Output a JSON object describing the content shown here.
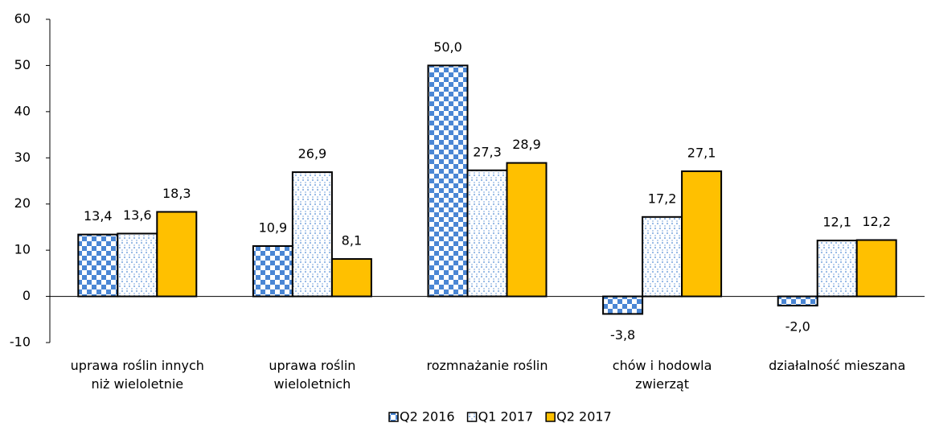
{
  "chart_data": {
    "type": "bar",
    "categories": [
      "uprawa roślin innych niż wieloletnie",
      "uprawa roślin wieloletnich",
      "rozmnażanie roślin",
      "chów i hodowla zwierząt",
      "działalność mieszana"
    ],
    "series": [
      {
        "name": "Q2 2016",
        "color": "#4a86d4",
        "pattern": "checker",
        "values": [
          13.4,
          10.9,
          50.0,
          -3.8,
          -2.0
        ],
        "value_labels": [
          "13,4",
          "10,9",
          "50,0",
          "-3,8",
          "-2,0"
        ]
      },
      {
        "name": "Q1 2017",
        "color": "#8fb4e3",
        "pattern": "dots",
        "values": [
          13.6,
          26.9,
          27.3,
          17.2,
          12.1
        ],
        "value_labels": [
          "13,6",
          "26,9",
          "27,3",
          "17,2",
          "12,1"
        ]
      },
      {
        "name": "Q2 2017",
        "color": "#ffc000",
        "pattern": "solid",
        "values": [
          18.3,
          8.1,
          28.9,
          27.1,
          12.2
        ],
        "value_labels": [
          "18,3",
          "8,1",
          "28,9",
          "27,1",
          "12,2"
        ]
      }
    ],
    "ylim": [
      -10,
      60
    ],
    "yticks": [
      -10,
      0,
      10,
      20,
      30,
      40,
      50,
      60
    ],
    "grid": false,
    "legend": "bottom"
  }
}
